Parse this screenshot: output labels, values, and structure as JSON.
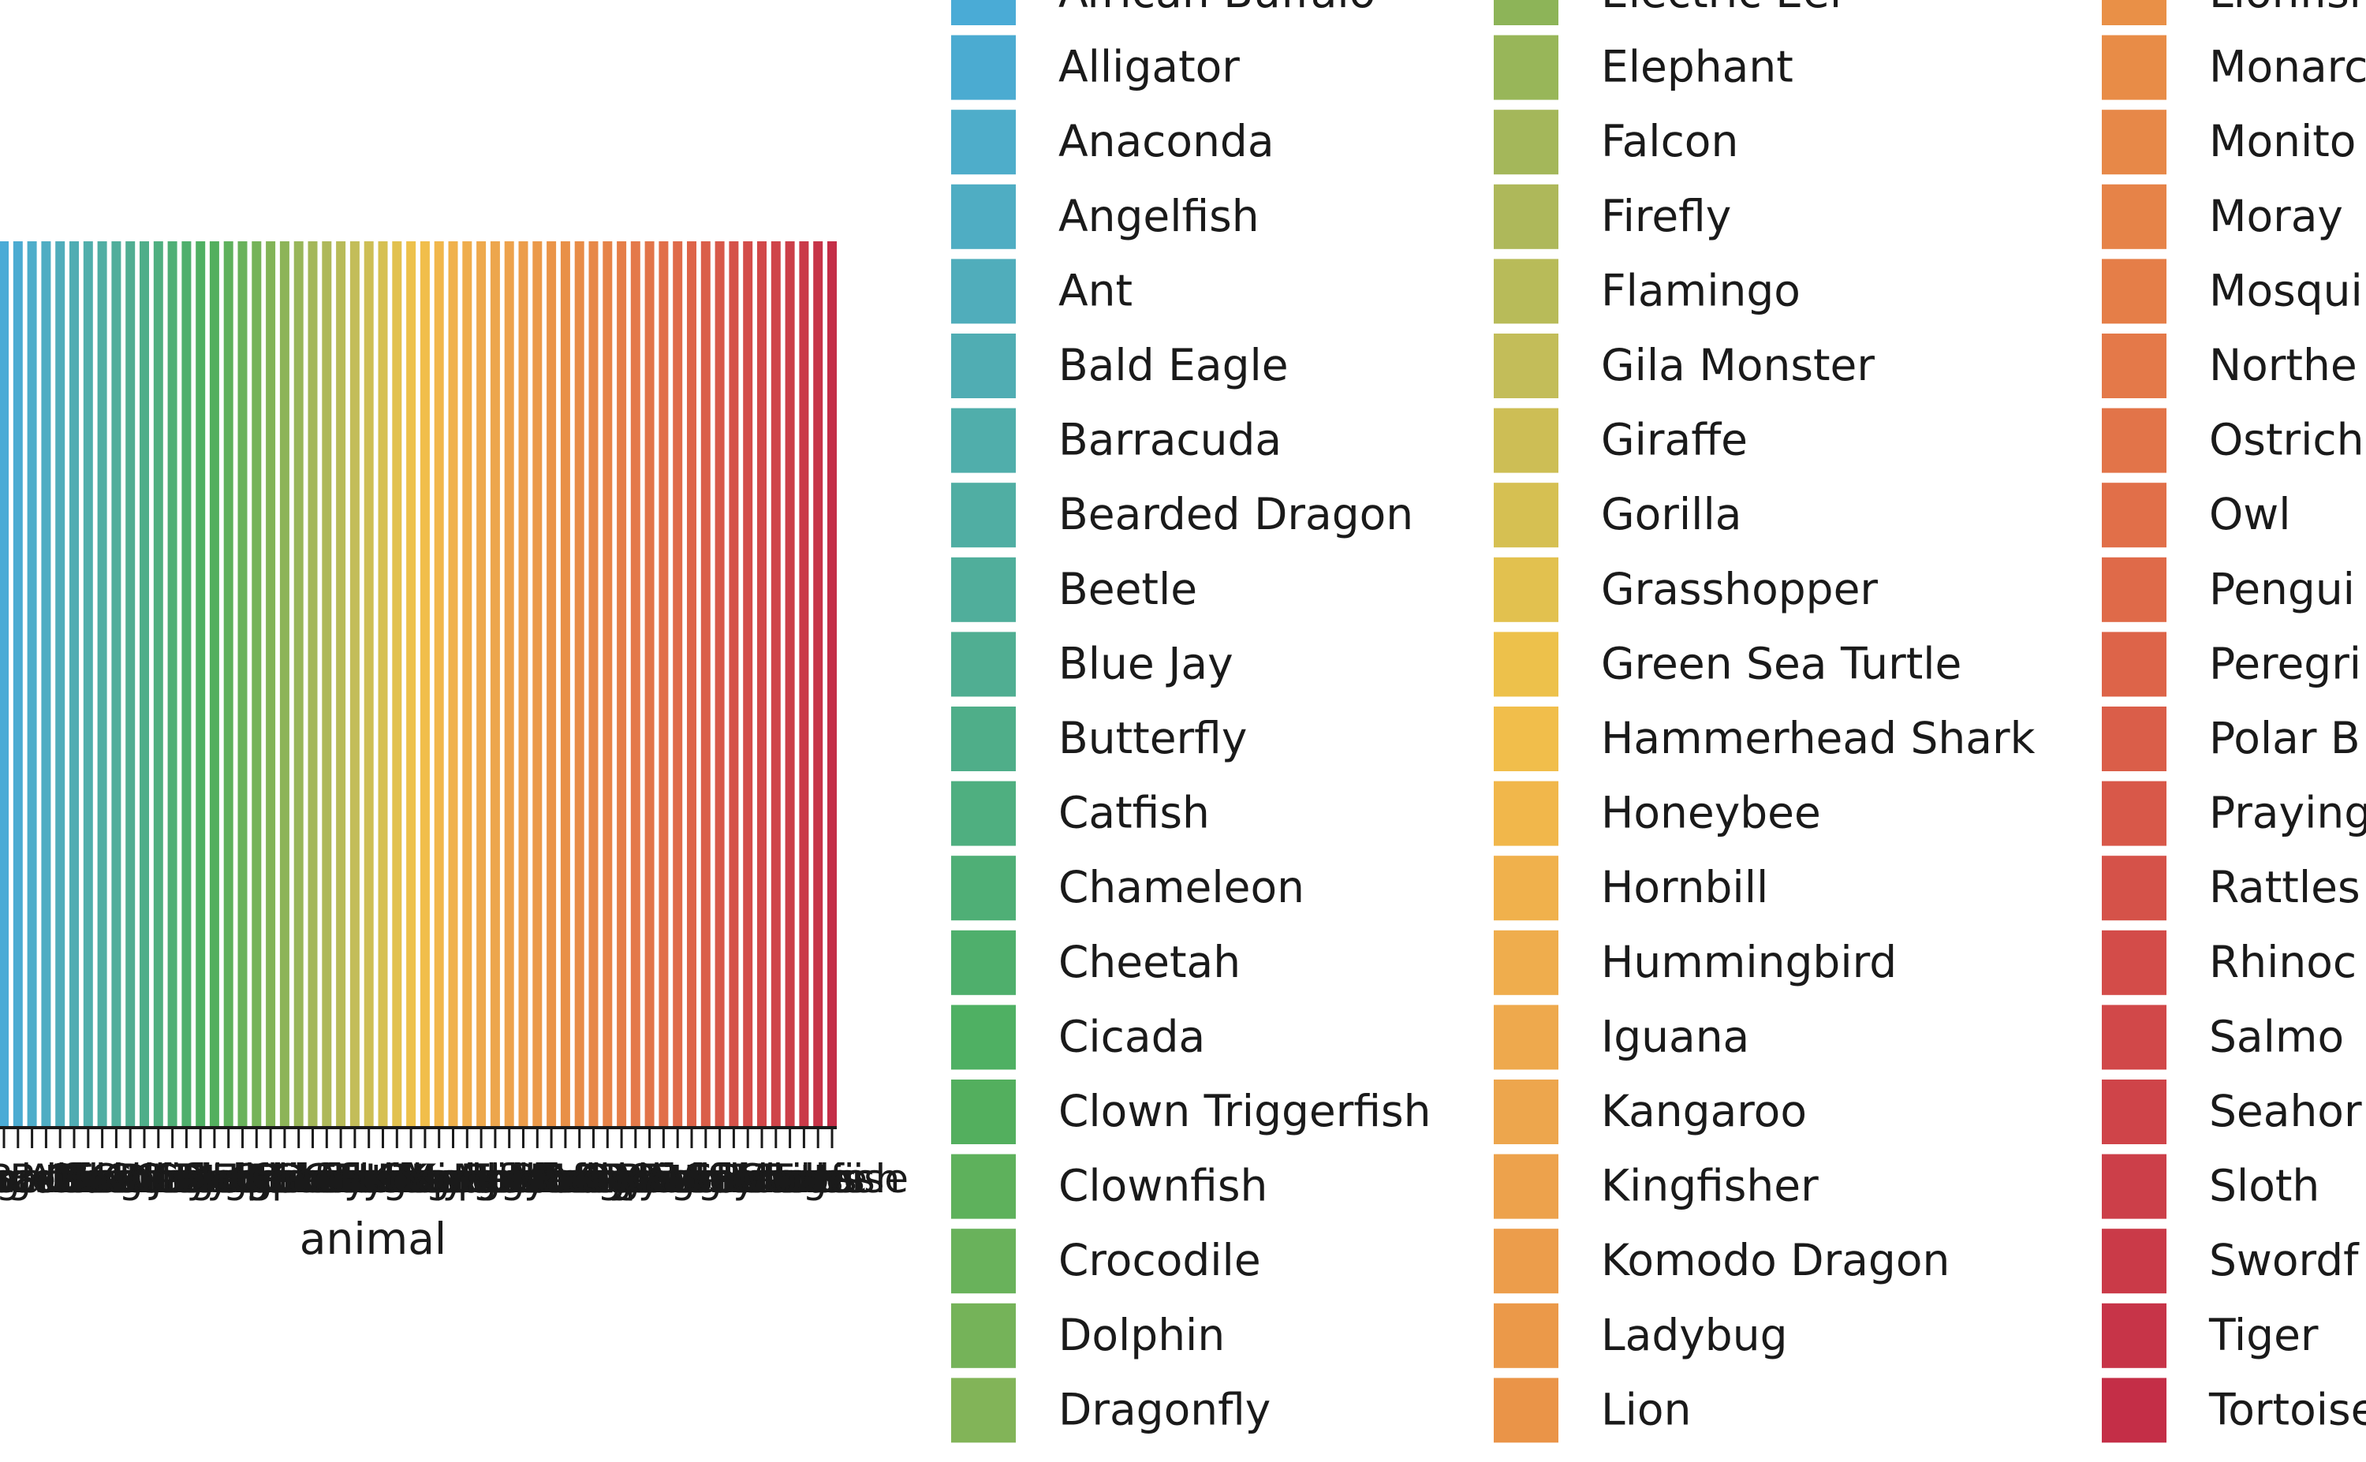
{
  "chart_data": {
    "type": "bar",
    "xlabel": "animal",
    "ylabel": "",
    "title": "",
    "legend_placement": "right",
    "legend_columns": 3,
    "grid": false,
    "categories": [
      "African Buffalo",
      "Alligator",
      "Anaconda",
      "Angelfish",
      "Ant",
      "Bald Eagle",
      "Barracuda",
      "Bearded Dragon",
      "Beetle",
      "Blue Jay",
      "Butterfly",
      "Catfish",
      "Chameleon",
      "Cheetah",
      "Cicada",
      "Clown Triggerfish",
      "Clownfish",
      "Crocodile",
      "Dolphin",
      "Dragonfly",
      "Electric Eel",
      "Elephant",
      "Falcon",
      "Firefly",
      "Flamingo",
      "Gila Monster",
      "Giraffe",
      "Gorilla",
      "Grasshopper",
      "Green Sea Turtle",
      "Hammerhead Shark",
      "Honeybee",
      "Hornbill",
      "Hummingbird",
      "Iguana",
      "Kangaroo",
      "Kingfisher",
      "Komodo Dragon",
      "Ladybug",
      "Lion",
      "Lionfish",
      "Monarch Butterfly",
      "Monitor Lizard",
      "Moray Eel",
      "Mosquito",
      "Northern Cardinal",
      "Ostrich",
      "Owl",
      "Penguin",
      "Peregrine Falcon",
      "Polar Bear",
      "Praying Mantis",
      "Rattlesnake",
      "Rhinoceros",
      "Salmon",
      "Seahorse",
      "Sloth",
      "Swordfish",
      "Tiger",
      "Tortoise"
    ],
    "legend_visible_labels": [
      "African Buffalo",
      "Alligator",
      "Anaconda",
      "Angelfish",
      "Ant",
      "Bald Eagle",
      "Barracuda",
      "Bearded Dragon",
      "Beetle",
      "Blue Jay",
      "Butterfly",
      "Catfish",
      "Chameleon",
      "Cheetah",
      "Cicada",
      "Clown Triggerfish",
      "Clownfish",
      "Crocodile",
      "Dolphin",
      "Dragonfly",
      "Electric Eel",
      "Elephant",
      "Falcon",
      "Firefly",
      "Flamingo",
      "Gila Monster",
      "Giraffe",
      "Gorilla",
      "Grasshopper",
      "Green Sea Turtle",
      "Hammerhead Shark",
      "Honeybee",
      "Hornbill",
      "Hummingbird",
      "Iguana",
      "Kangaroo",
      "Kingfisher",
      "Komodo Dragon",
      "Ladybug",
      "Lion",
      "Lionfish",
      "Monarc",
      "Monito",
      "Moray",
      "Mosqui",
      "Northe",
      "Ostrich",
      "Owl",
      "Pengui",
      "Peregri",
      "Polar B",
      "Praying",
      "Rattles",
      "Rhinoc",
      "Salmo",
      "Seahor",
      "Sloth",
      "Swordf",
      "Tiger",
      "Tortoise"
    ],
    "values": [
      1,
      1,
      1,
      1,
      1,
      1,
      1,
      1,
      1,
      1,
      1,
      1,
      1,
      1,
      1,
      1,
      1,
      1,
      1,
      1,
      1,
      1,
      1,
      1,
      1,
      1,
      1,
      1,
      1,
      1,
      1,
      1,
      1,
      1,
      1,
      1,
      1,
      1,
      1,
      1,
      1,
      1,
      1,
      1,
      1,
      1,
      1,
      1,
      1,
      1,
      1,
      1,
      1,
      1,
      1,
      1,
      1,
      1,
      1,
      1
    ],
    "ylim": [
      0,
      1
    ],
    "colors": [
      "#4aabd6",
      "#4babd1",
      "#4eadca",
      "#4fadc3",
      "#50adbb",
      "#50adb3",
      "#50aeab",
      "#50aea3",
      "#50ae9b",
      "#50ae92",
      "#4fae89",
      "#4faf80",
      "#4faf76",
      "#4faf6c",
      "#4fb063",
      "#53af5e",
      "#5eb15c",
      "#69b25b",
      "#75b359",
      "#82b458",
      "#8db458",
      "#98b659",
      "#a4b75a",
      "#aeb85a",
      "#b8bb59",
      "#c3bd59",
      "#cdbe55",
      "#d6c052",
      "#e2c14f",
      "#edc14b",
      "#f1be4b",
      "#f1b74b",
      "#f0b14c",
      "#efad4d",
      "#eea94d",
      "#eda64d",
      "#eda24c",
      "#ec9d4b",
      "#eb9949",
      "#ea9448",
      "#e99047",
      "#e88c47",
      "#e78848",
      "#e68348",
      "#e57e48",
      "#e47949",
      "#e27449",
      "#e16f49",
      "#df6a49",
      "#dd6449",
      "#da5e49",
      "#d85849",
      "#d55249",
      "#d34c49",
      "#d14849",
      "#cf4449",
      "#cc3f49",
      "#ca3a48",
      "#c73448",
      "#c42e47"
    ]
  }
}
